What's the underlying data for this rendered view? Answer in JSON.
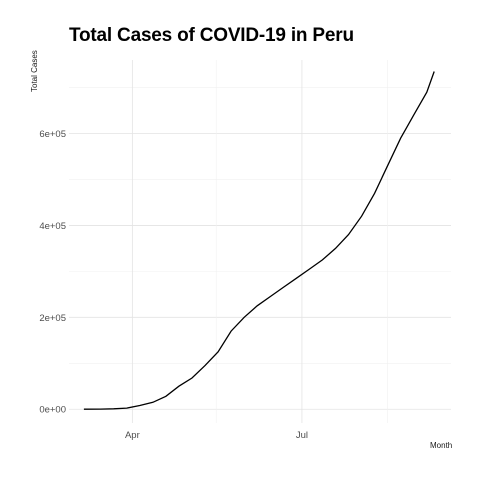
{
  "chart_data": {
    "type": "line",
    "title": "Total Cases of COVID-19 in Peru",
    "xlabel": "Month",
    "ylabel": "Total Cases",
    "x_ticks": [
      "Apr",
      "Jul"
    ],
    "y_ticks": [
      {
        "value": 0,
        "label": "0e+00"
      },
      {
        "value": 200000,
        "label": "2e+05"
      },
      {
        "value": 400000,
        "label": "4e+05"
      },
      {
        "value": 600000,
        "label": "6e+05"
      }
    ],
    "grid": true,
    "ylim": [
      -30000,
      760000
    ],
    "xlim": [
      "2020-02-27",
      "2020-09-19"
    ],
    "series": [
      {
        "x": [
          "2020-03-06",
          "2020-03-15",
          "2020-03-22",
          "2020-03-29",
          "2020-04-05",
          "2020-04-12",
          "2020-04-19",
          "2020-04-26",
          "2020-05-03",
          "2020-05-10",
          "2020-05-17",
          "2020-05-24",
          "2020-05-31",
          "2020-06-07",
          "2020-06-14",
          "2020-06-21",
          "2020-06-28",
          "2020-07-05",
          "2020-07-12",
          "2020-07-19",
          "2020-07-26",
          "2020-08-02",
          "2020-08-09",
          "2020-08-16",
          "2020-08-23",
          "2020-08-30",
          "2020-09-06",
          "2020-09-10"
        ],
        "values": [
          0,
          300,
          1000,
          2500,
          8000,
          15000,
          28000,
          50000,
          68000,
          95000,
          125000,
          170000,
          200000,
          225000,
          245000,
          265000,
          285000,
          305000,
          325000,
          350000,
          380000,
          420000,
          470000,
          530000,
          590000,
          640000,
          690000,
          735000
        ]
      }
    ]
  }
}
